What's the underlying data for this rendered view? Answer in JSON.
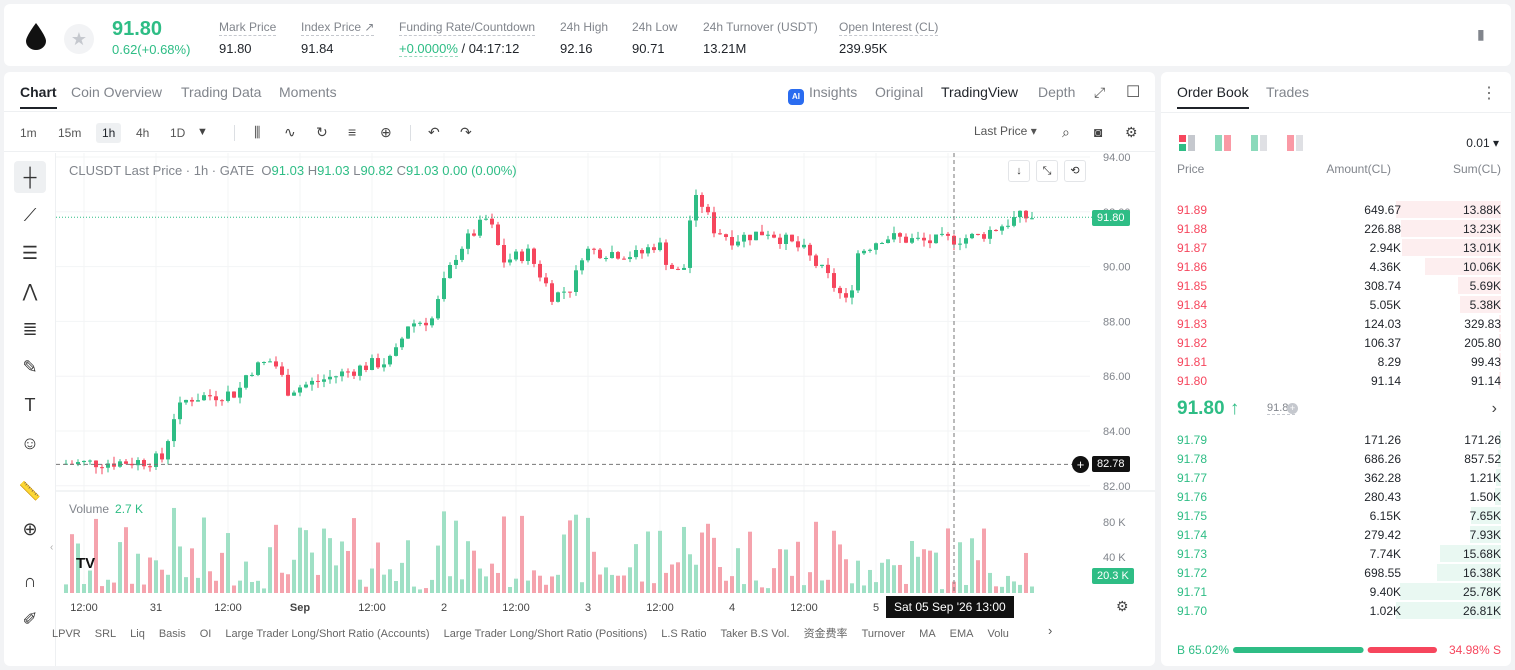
{
  "header": {
    "last_price": "91.80",
    "change": "0.62(+0.68%)",
    "stats": [
      {
        "label": "Mark Price",
        "value": "91.80"
      },
      {
        "label": "Index Price ↗",
        "value": "91.84"
      },
      {
        "label": "Funding Rate/Countdown",
        "value_green": "+0.0000%",
        "value": " / 04:17:12"
      },
      {
        "label": "24h High",
        "value": "92.16"
      },
      {
        "label": "24h Low",
        "value": "90.71"
      },
      {
        "label": "24h Turnover (USDT)",
        "value": "13.21M"
      },
      {
        "label": "Open Interest (CL)",
        "value": "239.95K"
      }
    ]
  },
  "chart_tabs": [
    "Chart",
    "Coin Overview",
    "Trading Data",
    "Moments"
  ],
  "chart_view_tabs": [
    "Insights",
    "Original",
    "TradingView",
    "Depth"
  ],
  "ai_badge": "AI",
  "intervals": [
    "1m",
    "15m",
    "1h",
    "4h",
    "1D"
  ],
  "price_type": "Last Price",
  "legend": {
    "symbol": "CLUSDT Last Price · 1h · GATE",
    "o": "91.03",
    "h": "91.03",
    "l": "90.82",
    "c": "91.03",
    "chg": "0.00 (0.00%)"
  },
  "volume_legend": {
    "label": "Volume",
    "value": "2.7 K"
  },
  "tv_logo": "TV",
  "price_axis": [
    "94.00",
    "92.00",
    "90.00",
    "88.00",
    "86.00",
    "84.00",
    "82.00"
  ],
  "volume_axis": [
    "80 K",
    "40 K"
  ],
  "time_axis": [
    "12:00",
    "31",
    "12:00",
    "Sep",
    "12:00",
    "2",
    "12:00",
    "3",
    "12:00",
    "4",
    "12:00",
    "5",
    "12:"
  ],
  "current_price_tag": "91.80",
  "crosshair_price_tag": "82.78",
  "volume_tag": "20.3 K",
  "crosshair_time": "Sat 05 Sep '26   13:00",
  "indicators": [
    "LPVR",
    "SRL",
    "Liq",
    "Basis",
    "OI",
    "Large Trader Long/Short Ratio (Accounts)",
    "Large Trader Long/Short Ratio (Positions)",
    "L.S Ratio",
    "Taker B.S Vol.",
    "资金费率",
    "Turnover",
    "MA",
    "EMA",
    "Volu"
  ],
  "orderbook": {
    "tabs": [
      "Order Book",
      "Trades"
    ],
    "precision": "0.01",
    "headers": {
      "price": "Price",
      "amount": "Amount(CL)",
      "sum": "Sum(CL)"
    },
    "asks": [
      {
        "price": "91.89",
        "amount": "649.67",
        "sum": "13.88K",
        "depth": 1.0
      },
      {
        "price": "91.88",
        "amount": "226.88",
        "sum": "13.23K",
        "depth": 0.95
      },
      {
        "price": "91.87",
        "amount": "2.94K",
        "sum": "13.01K",
        "depth": 0.94
      },
      {
        "price": "91.86",
        "amount": "4.36K",
        "sum": "10.06K",
        "depth": 0.72
      },
      {
        "price": "91.85",
        "amount": "308.74",
        "sum": "5.69K",
        "depth": 0.41
      },
      {
        "price": "91.84",
        "amount": "5.05K",
        "sum": "5.38K",
        "depth": 0.39
      },
      {
        "price": "91.83",
        "amount": "124.03",
        "sum": "329.83",
        "depth": 0.02
      },
      {
        "price": "91.82",
        "amount": "106.37",
        "sum": "205.80",
        "depth": 0.015
      },
      {
        "price": "91.81",
        "amount": "8.29",
        "sum": "99.43",
        "depth": 0.007
      },
      {
        "price": "91.80",
        "amount": "91.14",
        "sum": "91.14",
        "depth": 0.006
      }
    ],
    "mid_price": "91.80 ↑",
    "mid_sub": "91.80",
    "bids": [
      {
        "price": "91.79",
        "amount": "171.26",
        "sum": "171.26",
        "depth": 0.006
      },
      {
        "price": "91.78",
        "amount": "686.26",
        "sum": "857.52",
        "depth": 0.03
      },
      {
        "price": "91.77",
        "amount": "362.28",
        "sum": "1.21K",
        "depth": 0.045
      },
      {
        "price": "91.76",
        "amount": "280.43",
        "sum": "1.50K",
        "depth": 0.056
      },
      {
        "price": "91.75",
        "amount": "6.15K",
        "sum": "7.65K",
        "depth": 0.285
      },
      {
        "price": "91.74",
        "amount": "279.42",
        "sum": "7.93K",
        "depth": 0.296
      },
      {
        "price": "91.73",
        "amount": "7.74K",
        "sum": "15.68K",
        "depth": 0.585
      },
      {
        "price": "91.72",
        "amount": "698.55",
        "sum": "16.38K",
        "depth": 0.611
      },
      {
        "price": "91.71",
        "amount": "9.40K",
        "sum": "25.78K",
        "depth": 0.962
      },
      {
        "price": "91.70",
        "amount": "1.02K",
        "sum": "26.81K",
        "depth": 1.0
      }
    ],
    "buy_ratio": "B 65.02%",
    "sell_ratio": "34.98% S",
    "buy_fraction": 0.6502
  },
  "colors": {
    "up": "#2ebd85",
    "down": "#f6465d"
  }
}
